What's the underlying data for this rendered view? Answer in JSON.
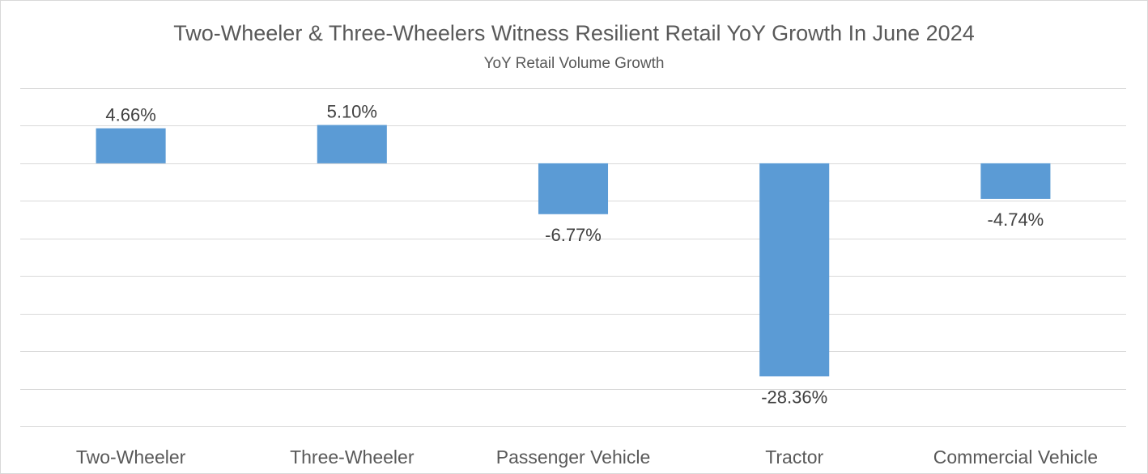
{
  "chart_data": {
    "type": "bar",
    "title": "Two-Wheeler & Three-Wheelers  Witness Resilient Retail YoY Growth In June 2024",
    "subtitle": "YoY Retail Volume Growth",
    "categories": [
      "Two-Wheeler",
      "Three-Wheeler",
      "Passenger Vehicle",
      "Tractor",
      "Commercial Vehicle"
    ],
    "values": [
      4.66,
      5.1,
      -6.77,
      -28.36,
      -4.74
    ],
    "data_labels": [
      "4.66%",
      "5.10%",
      "-6.77%",
      "-28.36%",
      "-4.74%"
    ],
    "ylim": [
      -35,
      10
    ],
    "ytick_step": 5,
    "y_axis_visible": false,
    "grid": true,
    "bar_color": "#5b9bd5",
    "gridline_color": "#d9d9d9",
    "text_color": "#595959"
  }
}
